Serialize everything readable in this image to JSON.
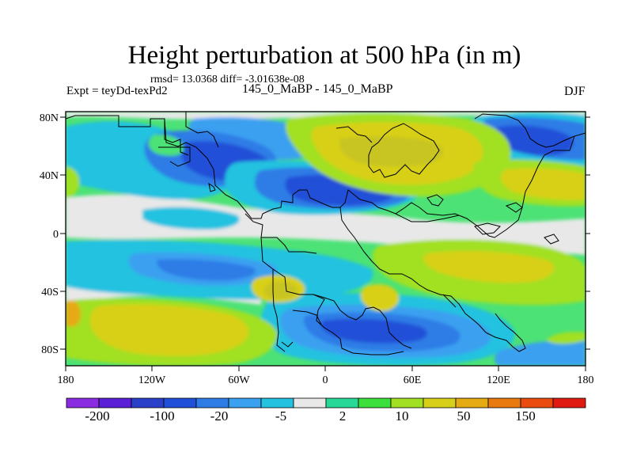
{
  "title": "Height perturbation at 500 hPa (in m)",
  "stats": "rmsd= 13.0368 diff= -3.01638e-08",
  "experiment": "Expt = teyDd-texPd2",
  "case_label": "145_0_MaBP - 145_0_MaBP",
  "season": "DJF",
  "axes": {
    "lat_ticks": [
      "80N",
      "40N",
      "0",
      "40S",
      "80S"
    ],
    "lon_ticks": [
      "180",
      "120W",
      "60W",
      "0",
      "60E",
      "120E",
      "180"
    ]
  },
  "colorbar": {
    "colors": [
      "#8a2be2",
      "#5a1fd6",
      "#2a40c8",
      "#2050d8",
      "#2e7ce6",
      "#3aa0f0",
      "#22c2e0",
      "#e8e8e8",
      "#28d896",
      "#3ce03c",
      "#a2e024",
      "#d8d018",
      "#e6aa12",
      "#e87a10",
      "#ea4c10",
      "#e01a10"
    ],
    "labels": [
      "-200",
      "-100",
      "-20",
      "-5",
      "2",
      "10",
      "50",
      "150"
    ]
  },
  "chart_data": {
    "type": "filled-contour-map",
    "title": "Height perturbation at 500 hPa (in m)",
    "variable": "500 hPa geopotential height perturbation",
    "units": "m",
    "season": "DJF",
    "projection": "cylindrical equidistant",
    "lon_range": [
      -180,
      180
    ],
    "lat_range": [
      -90,
      90
    ],
    "rmsd": 13.0368,
    "diff": -3.01638e-08,
    "contour_levels": [
      -300,
      -200,
      -150,
      -100,
      -50,
      -20,
      -10,
      -5,
      -2,
      2,
      5,
      10,
      20,
      50,
      100,
      150,
      200
    ]
  }
}
